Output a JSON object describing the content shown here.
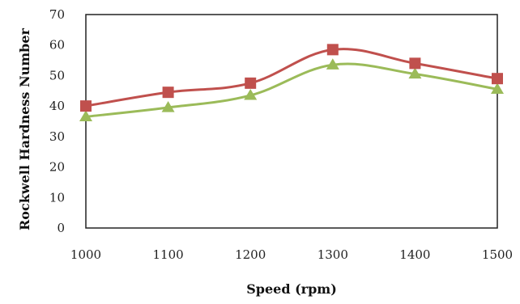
{
  "chart_data": {
    "type": "line",
    "title": "",
    "xlabel": "Speed (rpm)",
    "ylabel": "Rockwell Hardness Number",
    "x": [
      1000,
      1100,
      1200,
      1300,
      1400,
      1500
    ],
    "xlim": [
      1000,
      1500
    ],
    "ylim": [
      0,
      70
    ],
    "yticks": [
      0,
      10,
      20,
      30,
      40,
      50,
      60,
      70
    ],
    "grid": false,
    "legend": "none",
    "series": [
      {
        "marker": "square",
        "color": "#c0504d",
        "values": [
          40,
          44.5,
          47.5,
          58.5,
          54,
          49
        ]
      },
      {
        "marker": "triangle",
        "color": "#9bbb59",
        "values": [
          36.5,
          39.5,
          43.5,
          53.5,
          50.5,
          45.5
        ]
      }
    ]
  }
}
